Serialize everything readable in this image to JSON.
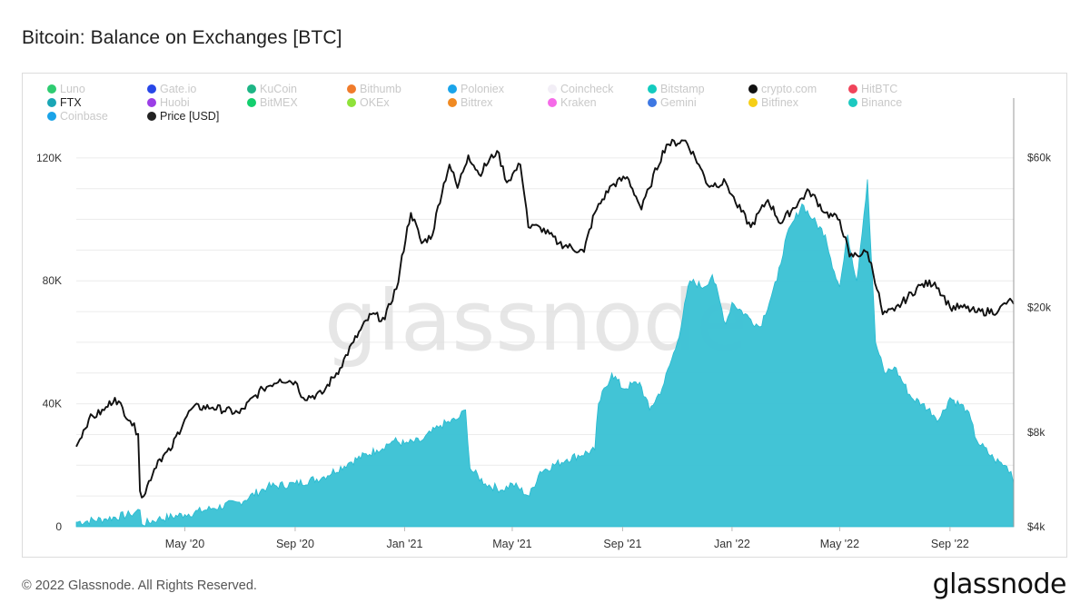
{
  "title": "Bitcoin: Balance on Exchanges [BTC]",
  "footer": "© 2022 Glassnode. All Rights Reserved.",
  "logo": "glassnode",
  "watermark": "glassnode",
  "colors": {
    "area": "#3fc3d6",
    "area_stroke": "#22b9d0",
    "price": "#111111",
    "grid": "#ececec",
    "faded_text": "#c9c9c9"
  },
  "legend": [
    {
      "label": "Luno",
      "color": "#2ecc71",
      "faded": true
    },
    {
      "label": "Gate.io",
      "color": "#2747e8",
      "faded": true
    },
    {
      "label": "KuCoin",
      "color": "#1db585",
      "faded": true
    },
    {
      "label": "Bithumb",
      "color": "#f07b2b",
      "faded": true
    },
    {
      "label": "Poloniex",
      "color": "#1aa4ea",
      "faded": true
    },
    {
      "label": "Coincheck",
      "color": "#f2eef6",
      "faded": true
    },
    {
      "label": "Bitstamp",
      "color": "#13cbbf",
      "faded": true
    },
    {
      "label": "crypto.com",
      "color": "#111111",
      "faded": true
    },
    {
      "label": "HitBTC",
      "color": "#f0445a",
      "faded": true
    },
    {
      "label": "FTX",
      "color": "#1aa6b5",
      "faded": false
    },
    {
      "label": "Huobi",
      "color": "#9b3ee6",
      "faded": true
    },
    {
      "label": "BitMEX",
      "color": "#13cf6e",
      "faded": true
    },
    {
      "label": "OKEx",
      "color": "#8fe23a",
      "faded": true
    },
    {
      "label": "Bittrex",
      "color": "#f08a22",
      "faded": true
    },
    {
      "label": "Kraken",
      "color": "#f56be8",
      "faded": true
    },
    {
      "label": "Gemini",
      "color": "#3e78e3",
      "faded": true
    },
    {
      "label": "Bitfinex",
      "color": "#f6cf16",
      "faded": true
    },
    {
      "label": "Binance",
      "color": "#1cc9c0",
      "faded": true
    },
    {
      "label": "Coinbase",
      "color": "#1aa3e8",
      "faded": true
    },
    {
      "label": "Price [USD]",
      "color": "#222222",
      "faded": false
    }
  ],
  "chart_data": {
    "type": "area",
    "title": "Bitcoin: Balance on Exchanges [BTC]",
    "x_start": "2020-01-01",
    "x_end": "2022-11-11",
    "x_ticks": [
      {
        "date": "2020-05-01",
        "label": "May '20"
      },
      {
        "date": "2020-09-01",
        "label": "Sep '20"
      },
      {
        "date": "2021-01-01",
        "label": "Jan '21"
      },
      {
        "date": "2021-05-01",
        "label": "May '21"
      },
      {
        "date": "2021-09-01",
        "label": "Sep '21"
      },
      {
        "date": "2022-01-01",
        "label": "Jan '22"
      },
      {
        "date": "2022-05-01",
        "label": "May '22"
      },
      {
        "date": "2022-09-01",
        "label": "Sep '22"
      }
    ],
    "y_left": {
      "label": "BTC",
      "min": 0,
      "max": 130000,
      "ticks": [
        {
          "value": 0,
          "label": "0"
        },
        {
          "value": 40000,
          "label": "40K"
        },
        {
          "value": 80000,
          "label": "80K"
        },
        {
          "value": 120000,
          "label": "120K"
        }
      ]
    },
    "y_right": {
      "label": "Price [USD]",
      "scale": "log",
      "min": 4000,
      "max": 75000,
      "ticks": [
        {
          "value": 4000,
          "label": "$4k"
        },
        {
          "value": 8000,
          "label": "$8k"
        },
        {
          "value": 20000,
          "label": "$20k"
        },
        {
          "value": 60000,
          "label": "$60k"
        }
      ]
    },
    "series": [
      {
        "name": "FTX",
        "axis": "left",
        "style": "area",
        "points": [
          [
            "2020-01-01",
            1500
          ],
          [
            "2020-02-01",
            2500
          ],
          [
            "2020-03-01",
            4000
          ],
          [
            "2020-03-12",
            5500
          ],
          [
            "2020-03-14",
            800
          ],
          [
            "2020-04-01",
            2500
          ],
          [
            "2020-05-01",
            4000
          ],
          [
            "2020-06-01",
            6000
          ],
          [
            "2020-07-01",
            8000
          ],
          [
            "2020-08-01",
            13000
          ],
          [
            "2020-09-01",
            14000
          ],
          [
            "2020-10-01",
            16000
          ],
          [
            "2020-11-01",
            21000
          ],
          [
            "2020-12-01",
            25000
          ],
          [
            "2020-12-20",
            28000
          ],
          [
            "2021-01-01",
            27000
          ],
          [
            "2021-01-20",
            28000
          ],
          [
            "2021-02-10",
            33000
          ],
          [
            "2021-03-01",
            35000
          ],
          [
            "2021-03-10",
            38000
          ],
          [
            "2021-03-15",
            19000
          ],
          [
            "2021-04-01",
            14000
          ],
          [
            "2021-04-20",
            12000
          ],
          [
            "2021-05-01",
            14000
          ],
          [
            "2021-05-20",
            10000
          ],
          [
            "2021-06-01",
            18000
          ],
          [
            "2021-07-01",
            22000
          ],
          [
            "2021-08-01",
            25000
          ],
          [
            "2021-08-05",
            40000
          ],
          [
            "2021-08-20",
            50000
          ],
          [
            "2021-09-01",
            45000
          ],
          [
            "2021-09-20",
            47000
          ],
          [
            "2021-10-01",
            38000
          ],
          [
            "2021-10-15",
            45000
          ],
          [
            "2021-11-01",
            60000
          ],
          [
            "2021-11-15",
            80000
          ],
          [
            "2021-12-01",
            78000
          ],
          [
            "2021-12-10",
            82000
          ],
          [
            "2021-12-25",
            66000
          ],
          [
            "2022-01-01",
            73000
          ],
          [
            "2022-01-20",
            68000
          ],
          [
            "2022-02-01",
            65000
          ],
          [
            "2022-02-20",
            80000
          ],
          [
            "2022-03-01",
            93000
          ],
          [
            "2022-03-20",
            105000
          ],
          [
            "2022-04-01",
            100000
          ],
          [
            "2022-04-15",
            95000
          ],
          [
            "2022-04-25",
            83000
          ],
          [
            "2022-05-01",
            78000
          ],
          [
            "2022-05-10",
            95000
          ],
          [
            "2022-05-20",
            80000
          ],
          [
            "2022-06-01",
            113000
          ],
          [
            "2022-06-10",
            60000
          ],
          [
            "2022-06-20",
            50000
          ],
          [
            "2022-07-01",
            52000
          ],
          [
            "2022-07-20",
            42000
          ],
          [
            "2022-08-01",
            40000
          ],
          [
            "2022-08-20",
            35000
          ],
          [
            "2022-09-01",
            42000
          ],
          [
            "2022-09-20",
            38000
          ],
          [
            "2022-10-01",
            28000
          ],
          [
            "2022-10-20",
            22000
          ],
          [
            "2022-11-01",
            20000
          ],
          [
            "2022-11-08",
            18000
          ],
          [
            "2022-11-11",
            14000
          ]
        ]
      },
      {
        "name": "Price [USD]",
        "axis": "right",
        "style": "line",
        "points": [
          [
            "2020-01-01",
            7200
          ],
          [
            "2020-01-15",
            8800
          ],
          [
            "2020-02-01",
            9400
          ],
          [
            "2020-02-13",
            10300
          ],
          [
            "2020-03-01",
            8700
          ],
          [
            "2020-03-10",
            7900
          ],
          [
            "2020-03-12",
            5200
          ],
          [
            "2020-03-16",
            5000
          ],
          [
            "2020-04-01",
            6500
          ],
          [
            "2020-04-15",
            7000
          ],
          [
            "2020-05-01",
            8800
          ],
          [
            "2020-05-10",
            9600
          ],
          [
            "2020-06-01",
            9600
          ],
          [
            "2020-07-01",
            9200
          ],
          [
            "2020-07-27",
            11000
          ],
          [
            "2020-08-15",
            11800
          ],
          [
            "2020-09-01",
            11600
          ],
          [
            "2020-09-10",
            10300
          ],
          [
            "2020-10-01",
            10600
          ],
          [
            "2020-10-21",
            12800
          ],
          [
            "2020-11-05",
            15500
          ],
          [
            "2020-11-25",
            19000
          ],
          [
            "2020-12-10",
            18300
          ],
          [
            "2020-12-25",
            24000
          ],
          [
            "2021-01-08",
            40000
          ],
          [
            "2021-01-20",
            32000
          ],
          [
            "2021-02-01",
            34000
          ],
          [
            "2021-02-20",
            57000
          ],
          [
            "2021-03-01",
            48000
          ],
          [
            "2021-03-13",
            61000
          ],
          [
            "2021-03-25",
            53000
          ],
          [
            "2021-04-14",
            63000
          ],
          [
            "2021-04-25",
            50000
          ],
          [
            "2021-05-10",
            57000
          ],
          [
            "2021-05-19",
            36000
          ],
          [
            "2021-06-01",
            36000
          ],
          [
            "2021-06-22",
            32000
          ],
          [
            "2021-07-20",
            30000
          ],
          [
            "2021-08-01",
            40000
          ],
          [
            "2021-08-20",
            49000
          ],
          [
            "2021-09-06",
            52000
          ],
          [
            "2021-09-22",
            41000
          ],
          [
            "2021-10-01",
            48000
          ],
          [
            "2021-10-20",
            66000
          ],
          [
            "2021-11-10",
            68000
          ],
          [
            "2021-11-25",
            57000
          ],
          [
            "2021-12-05",
            49000
          ],
          [
            "2021-12-25",
            50000
          ],
          [
            "2022-01-05",
            43000
          ],
          [
            "2022-01-22",
            36000
          ],
          [
            "2022-02-10",
            44000
          ],
          [
            "2022-02-24",
            37000
          ],
          [
            "2022-03-28",
            47000
          ],
          [
            "2022-04-15",
            40000
          ],
          [
            "2022-05-01",
            38000
          ],
          [
            "2022-05-12",
            29000
          ],
          [
            "2022-06-01",
            30000
          ],
          [
            "2022-06-18",
            19000
          ],
          [
            "2022-07-01",
            19500
          ],
          [
            "2022-07-30",
            23500
          ],
          [
            "2022-08-15",
            24000
          ],
          [
            "2022-09-01",
            20000
          ],
          [
            "2022-09-15",
            20000
          ],
          [
            "2022-10-01",
            19300
          ],
          [
            "2022-10-25",
            19500
          ],
          [
            "2022-11-05",
            21000
          ],
          [
            "2022-11-11",
            20500
          ]
        ]
      }
    ]
  }
}
